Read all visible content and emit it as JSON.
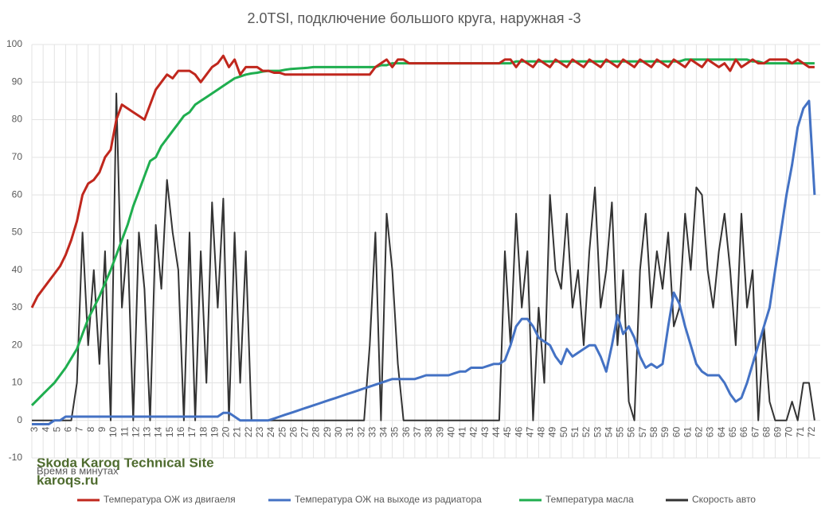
{
  "chart_data": {
    "type": "line",
    "title": "2.0TSI, подключение большого круга, наружная -3",
    "xlabel": "Время в минутах",
    "annotations": [
      "Skoda Karoq Technical Site",
      "karoqs.ru"
    ],
    "grid": true,
    "legend": "bottom",
    "xlim": [
      3,
      73
    ],
    "ylim": [
      -10,
      100
    ],
    "yticks": [
      -10,
      0,
      10,
      20,
      30,
      40,
      50,
      60,
      70,
      80,
      90,
      100
    ],
    "xticks": [
      3,
      4,
      5,
      6,
      7,
      8,
      9,
      10,
      11,
      12,
      13,
      14,
      15,
      16,
      17,
      18,
      19,
      20,
      21,
      22,
      23,
      24,
      25,
      26,
      27,
      28,
      29,
      30,
      31,
      32,
      33,
      34,
      35,
      36,
      37,
      38,
      39,
      40,
      41,
      42,
      43,
      44,
      45,
      46,
      47,
      48,
      49,
      50,
      51,
      52,
      53,
      54,
      55,
      56,
      57,
      58,
      59,
      60,
      61,
      62,
      63,
      64,
      65,
      66,
      67,
      68,
      69,
      70,
      71,
      72
    ],
    "x": [
      3,
      3.5,
      4,
      4.5,
      5,
      5.5,
      6,
      6.5,
      7,
      7.5,
      8,
      8.5,
      9,
      9.5,
      10,
      10.5,
      11,
      11.5,
      12,
      12.5,
      13,
      13.5,
      14,
      14.5,
      15,
      15.5,
      16,
      16.5,
      17,
      17.5,
      18,
      18.5,
      19,
      19.5,
      20,
      20.5,
      21,
      21.5,
      22,
      22.5,
      23,
      23.5,
      24,
      24.5,
      25,
      25.5,
      26,
      26.5,
      27,
      27.5,
      28,
      28.5,
      29,
      29.5,
      30,
      30.5,
      31,
      31.5,
      32,
      32.5,
      33,
      33.5,
      34,
      34.5,
      35,
      35.5,
      36,
      36.5,
      37,
      37.5,
      38,
      38.5,
      39,
      39.5,
      40,
      40.5,
      41,
      41.5,
      42,
      42.5,
      43,
      43.5,
      44,
      44.5,
      45,
      45.5,
      46,
      46.5,
      47,
      47.5,
      48,
      48.5,
      49,
      49.5,
      50,
      50.5,
      51,
      51.5,
      52,
      52.5,
      53,
      53.5,
      54,
      54.5,
      55,
      55.5,
      56,
      56.5,
      57,
      57.5,
      58,
      58.5,
      59,
      59.5,
      60,
      60.5,
      61,
      61.5,
      62,
      62.5,
      63,
      63.5,
      64,
      64.5,
      65,
      65.5,
      66,
      66.5,
      67,
      67.5,
      68,
      68.5,
      69,
      69.5,
      70,
      70.5,
      71,
      71.5,
      72,
      72.5
    ],
    "series": [
      {
        "name": "Температура ОЖ из двигаеля",
        "color": "#c0271d",
        "values": [
          30,
          33,
          35,
          37,
          39,
          41,
          44,
          48,
          53,
          60,
          63,
          64,
          66,
          70,
          72,
          80,
          84,
          83,
          82,
          81,
          80,
          84,
          88,
          90,
          92,
          91,
          93,
          93,
          93,
          92,
          90,
          92,
          94,
          95,
          97,
          94,
          96,
          92,
          94,
          94,
          94,
          93,
          93,
          92.5,
          92.5,
          92,
          92,
          92,
          92,
          92,
          92,
          92,
          92,
          92,
          92,
          92,
          92,
          92,
          92,
          92,
          92,
          94,
          95,
          96,
          94,
          96,
          96,
          95,
          95,
          95,
          95,
          95,
          95,
          95,
          95,
          95,
          95,
          95,
          95,
          95,
          95,
          95,
          95,
          95,
          96,
          96,
          94,
          96,
          95,
          94,
          96,
          95,
          94,
          96,
          95,
          94,
          96,
          95,
          94,
          96,
          95,
          94,
          96,
          95,
          94,
          96,
          95,
          94,
          96,
          95,
          94,
          96,
          95,
          94,
          96,
          95,
          94,
          96,
          95,
          94,
          96,
          95,
          94,
          95,
          93,
          96,
          94,
          95,
          96,
          95,
          95,
          96,
          96,
          96,
          96,
          95,
          96,
          95,
          94,
          94
        ]
      },
      {
        "name": "Температура ОЖ на выходе из радиатора",
        "color": "#4472c4",
        "values": [
          -1,
          -1,
          -1,
          -1,
          0,
          0,
          1,
          1,
          1,
          1,
          1,
          1,
          1,
          1,
          1,
          1,
          1,
          1,
          1,
          1,
          1,
          1,
          1,
          1,
          1,
          1,
          1,
          1,
          1,
          1,
          1,
          1,
          1,
          1,
          2,
          2,
          1,
          0,
          0,
          0,
          0,
          0,
          0,
          0.5,
          1,
          1.5,
          2,
          2.5,
          3,
          3.5,
          4,
          4.5,
          5,
          5.5,
          6,
          6.5,
          7,
          7.5,
          8,
          8.5,
          9,
          9.5,
          10,
          10.5,
          11,
          11,
          11,
          11,
          11,
          11.5,
          12,
          12,
          12,
          12,
          12,
          12.5,
          13,
          13,
          14,
          14,
          14,
          14.5,
          15,
          15,
          16,
          20,
          25,
          27,
          27,
          25,
          22,
          21,
          20,
          17,
          15,
          19,
          17,
          18,
          19,
          20,
          20,
          17,
          13,
          20,
          28,
          23,
          25,
          22,
          17,
          14,
          15,
          14,
          15,
          25,
          34,
          31,
          25,
          20,
          15,
          13,
          12,
          12,
          12,
          10,
          7,
          5,
          6,
          10,
          15,
          20,
          25,
          30,
          40,
          50,
          60,
          68,
          78,
          83,
          85,
          60
        ]
      },
      {
        "name": "Температура масла",
        "color": "#1fae4f",
        "values": [
          4,
          5.5,
          7,
          8.5,
          10,
          12,
          14,
          16.5,
          19,
          23,
          27,
          30,
          33,
          36.5,
          40,
          44,
          48,
          52,
          57,
          61,
          65,
          69,
          70,
          73,
          75,
          77,
          79,
          81,
          82,
          84,
          85,
          86,
          87,
          88,
          89,
          90,
          91,
          91.5,
          92,
          92.3,
          92.5,
          92.8,
          93,
          93,
          93,
          93.3,
          93.5,
          93.6,
          93.7,
          93.8,
          94,
          94,
          94,
          94,
          94,
          94,
          94,
          94,
          94,
          94,
          94,
          94,
          94.5,
          94.5,
          95,
          95,
          95,
          95,
          95,
          95,
          95,
          95,
          95,
          95,
          95,
          95,
          95,
          95,
          95,
          95,
          95,
          95,
          95,
          95,
          95,
          95,
          95.5,
          95.5,
          95.5,
          95.5,
          95.5,
          95.5,
          95.5,
          95.5,
          95.5,
          95.5,
          95.5,
          95.5,
          95.5,
          95.5,
          95.5,
          95.5,
          95.5,
          95.5,
          95.5,
          95.5,
          95.5,
          95.5,
          95.5,
          95.5,
          95.5,
          95.5,
          95.5,
          95.5,
          95.5,
          95.5,
          96,
          96,
          96,
          96,
          96,
          96,
          96,
          96,
          96,
          96,
          96,
          96,
          95.5,
          95.5,
          95,
          95,
          95,
          95,
          95,
          95,
          95,
          95,
          95,
          95
        ]
      },
      {
        "name": "Скорость авто",
        "color": "#333333",
        "values": [
          0,
          0,
          0,
          0,
          0,
          0,
          0,
          0,
          10,
          50,
          20,
          40,
          15,
          45,
          0,
          87,
          30,
          48,
          0,
          50,
          35,
          0,
          52,
          35,
          64,
          50,
          40,
          0,
          50,
          0,
          45,
          10,
          58,
          30,
          59,
          0,
          50,
          10,
          45,
          0,
          0,
          0,
          0,
          0,
          0,
          0,
          0,
          0,
          0,
          0,
          0,
          0,
          0,
          0,
          0,
          0,
          0,
          0,
          0,
          0,
          20,
          50,
          0,
          55,
          40,
          15,
          0,
          0,
          0,
          0,
          0,
          0,
          0,
          0,
          0,
          0,
          0,
          0,
          0,
          0,
          0,
          0,
          0,
          0,
          45,
          20,
          55,
          30,
          45,
          0,
          30,
          10,
          60,
          40,
          35,
          55,
          30,
          40,
          20,
          45,
          62,
          30,
          40,
          58,
          20,
          40,
          5,
          0,
          40,
          55,
          30,
          45,
          35,
          50,
          25,
          30,
          55,
          40,
          62,
          60,
          40,
          30,
          45,
          55,
          40,
          20,
          55,
          30,
          40,
          0,
          25,
          5,
          0,
          0,
          0,
          5,
          0,
          10,
          10,
          0
        ]
      }
    ]
  }
}
